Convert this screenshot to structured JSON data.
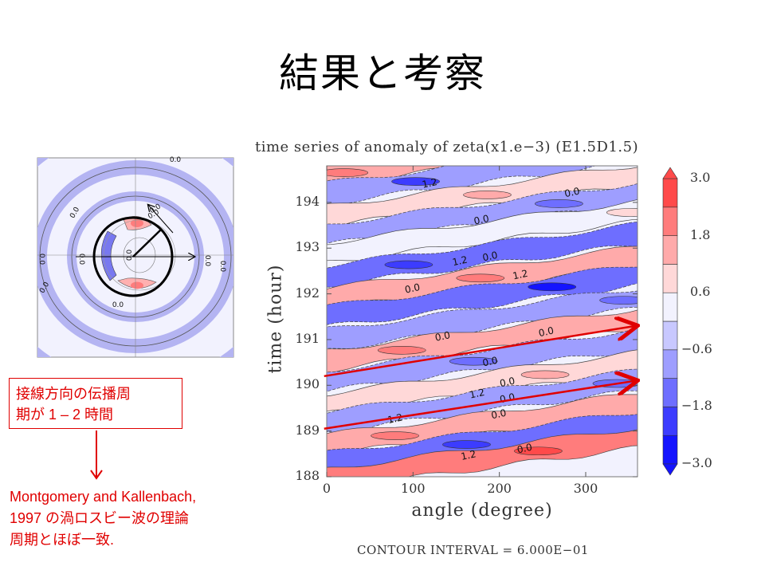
{
  "slide": {
    "title": "結果と考察"
  },
  "inset_panel": {
    "description": "horizontal plan view of vorticity anomaly with circle and radius arrow",
    "contour_labels": [
      "0.0",
      "0.0",
      "0.0",
      "0.0",
      "0.0",
      "0.0",
      "0.0",
      "0.0",
      "0.0",
      "0.0",
      "0.0"
    ],
    "icon_circle": "ring-overlay",
    "icon_arrows": [
      "radius-arrow",
      "x-axis-arrow"
    ]
  },
  "callout": {
    "line1": "接線方向の伝播周",
    "line2": "期が 1 – 2 時間"
  },
  "conclusion": {
    "line1": "Montgomery and Kallenbach,",
    "line2": "1997 の渦ロスビー波の理論",
    "line3": "周期とほぼ一致."
  },
  "colors": {
    "annotation_red": "#e00000",
    "colorbar": [
      "#1414ff",
      "#3c3cff",
      "#6e6eff",
      "#9e9eff",
      "#c8c8ff",
      "#f2f2fe",
      "#ffd8d8",
      "#ffaaaa",
      "#ff7c7c",
      "#ff4a4a"
    ]
  },
  "chart_data": {
    "type": "heatmap",
    "title": "time series of anomaly of zeta(x1.e−3) (E1.5D1.5)",
    "xlabel": "angle (degree)",
    "ylabel": "time (hour)",
    "xlim": [
      0,
      360
    ],
    "ylim": [
      188,
      194.8
    ],
    "x_ticks": [
      "0",
      "100",
      "200",
      "300"
    ],
    "x_tick_values": [
      0,
      100,
      200,
      300
    ],
    "y_ticks": [
      "188",
      "189",
      "190",
      "191",
      "192",
      "193",
      "194"
    ],
    "y_tick_values": [
      188,
      189,
      190,
      191,
      192,
      193,
      194
    ],
    "colorbar": {
      "levels": [
        -3.0,
        -2.4,
        -1.8,
        -1.2,
        -0.6,
        0.0,
        0.6,
        1.2,
        1.8,
        2.4,
        3.0
      ],
      "tick_labels": [
        "3.0",
        "1.8",
        "0.6",
        "−0.6",
        "−1.8",
        "−3.0"
      ],
      "tick_values": [
        3.0,
        1.8,
        0.6,
        -0.6,
        -1.8,
        -3.0
      ],
      "extend": "both"
    },
    "contour_interval_text": "CONTOUR INTERVAL = 6.000E−01",
    "contour_labels": [
      {
        "text": "1.2",
        "x": 120,
        "y": 194.35
      },
      {
        "text": "0.0",
        "x": 285,
        "y": 194.15
      },
      {
        "text": "0.0",
        "x": 180,
        "y": 193.55
      },
      {
        "text": "1.2",
        "x": 155,
        "y": 192.65
      },
      {
        "text": "0.0",
        "x": 190,
        "y": 192.75
      },
      {
        "text": "1.2",
        "x": 225,
        "y": 192.35
      },
      {
        "text": "0.0",
        "x": 100,
        "y": 192.05
      },
      {
        "text": "0.0",
        "x": 135,
        "y": 191.0
      },
      {
        "text": "0.0",
        "x": 255,
        "y": 191.1
      },
      {
        "text": "0.0",
        "x": 190,
        "y": 190.45
      },
      {
        "text": "0.0",
        "x": 210,
        "y": 190.0
      },
      {
        "text": "1.2",
        "x": 175,
        "y": 189.75
      },
      {
        "text": "0.0",
        "x": 210,
        "y": 189.65
      },
      {
        "text": "1.2",
        "x": 80,
        "y": 189.2
      },
      {
        "text": "0.0",
        "x": 200,
        "y": 189.3
      },
      {
        "text": "1.2",
        "x": 165,
        "y": 188.4
      },
      {
        "text": "0.0",
        "x": 230,
        "y": 188.55
      }
    ],
    "bands": [
      {
        "center_t0": 194.6,
        "slope": 0.0025,
        "value": 1.5
      },
      {
        "center_t0": 194.2,
        "slope": 0.0025,
        "value": -1.2
      },
      {
        "center_t0": 193.7,
        "slope": 0.0025,
        "value": 0.9
      },
      {
        "center_t0": 193.3,
        "slope": 0.0025,
        "value": -0.9
      },
      {
        "center_t0": 192.9,
        "slope": 0.0025,
        "value": 0.3
      },
      {
        "center_t0": 192.4,
        "slope": 0.0025,
        "value": -1.3
      },
      {
        "center_t0": 191.9,
        "slope": 0.0025,
        "value": 1.6
      },
      {
        "center_t0": 191.5,
        "slope": 0.0025,
        "value": -1.8
      },
      {
        "center_t0": 191.0,
        "slope": 0.0025,
        "value": -1.0
      },
      {
        "center_t0": 190.55,
        "slope": 0.0025,
        "value": 1.2
      },
      {
        "center_t0": 190.1,
        "slope": 0.0025,
        "value": -0.8
      },
      {
        "center_t0": 189.6,
        "slope": 0.0025,
        "value": 0.7
      },
      {
        "center_t0": 189.2,
        "slope": 0.0025,
        "value": -1.1
      },
      {
        "center_t0": 188.7,
        "slope": 0.0025,
        "value": 1.4
      },
      {
        "center_t0": 188.3,
        "slope": 0.0025,
        "value": -1.6
      },
      {
        "center_t0": 187.95,
        "slope": 0.0025,
        "value": 2.2
      }
    ],
    "annotations": [
      {
        "type": "arrow",
        "color": "#e00000",
        "from": [
          -3,
          190.2
        ],
        "to": [
          360,
          191.3
        ]
      },
      {
        "type": "arrow",
        "color": "#e00000",
        "from": [
          -3,
          189.05
        ],
        "to": [
          360,
          190.1
        ]
      }
    ]
  }
}
